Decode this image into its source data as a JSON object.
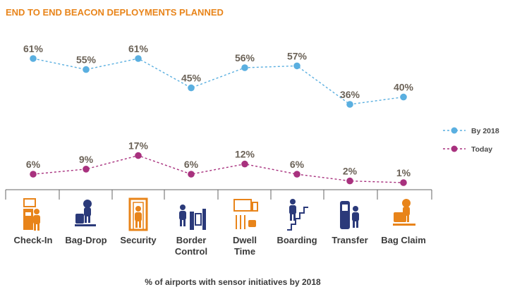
{
  "chart_data": {
    "type": "line",
    "title": "END TO END BEACON DEPLOYMENTS PLANNED",
    "categories": [
      "Check-In",
      "Bag-Drop",
      "Security",
      "Border Control",
      "Dwell Time",
      "Boarding",
      "Transfer",
      "Bag Claim"
    ],
    "category_lines": [
      [
        "Check-In"
      ],
      [
        "Bag-Drop"
      ],
      [
        "Security"
      ],
      [
        "Border",
        "Control"
      ],
      [
        "Dwell",
        "Time"
      ],
      [
        "Boarding"
      ],
      [
        "Transfer"
      ],
      [
        "Bag Claim"
      ]
    ],
    "series": [
      {
        "name": "By 2018",
        "values": [
          61,
          55,
          61,
          45,
          56,
          57,
          36,
          40
        ],
        "labels": [
          "61%",
          "55%",
          "61%",
          "45%",
          "56%",
          "57%",
          "36%",
          "40%"
        ],
        "color": "#5aafe0",
        "style": "dashed"
      },
      {
        "name": "Today",
        "values": [
          6,
          9,
          17,
          6,
          12,
          6,
          2,
          1
        ],
        "labels": [
          "6%",
          "9%",
          "17%",
          "6%",
          "12%",
          "6%",
          "2%",
          "1%"
        ],
        "color": "#a8317e",
        "style": "dashed"
      }
    ],
    "footnote": "% of airports with sensor initiatives by 2018",
    "legend_position": "right",
    "grid": false,
    "title_color": "#e8841a",
    "icon_color_orange": "#e8841a",
    "icon_color_navy": "#2b3a7a",
    "icons": [
      "kiosk-person-icon",
      "luggage-person-icon",
      "scanner-gate-icon",
      "passport-gate-icon",
      "shopping-dining-icon",
      "stairs-walker-icon",
      "transit-person-icon",
      "suitcase-person-icon"
    ]
  }
}
